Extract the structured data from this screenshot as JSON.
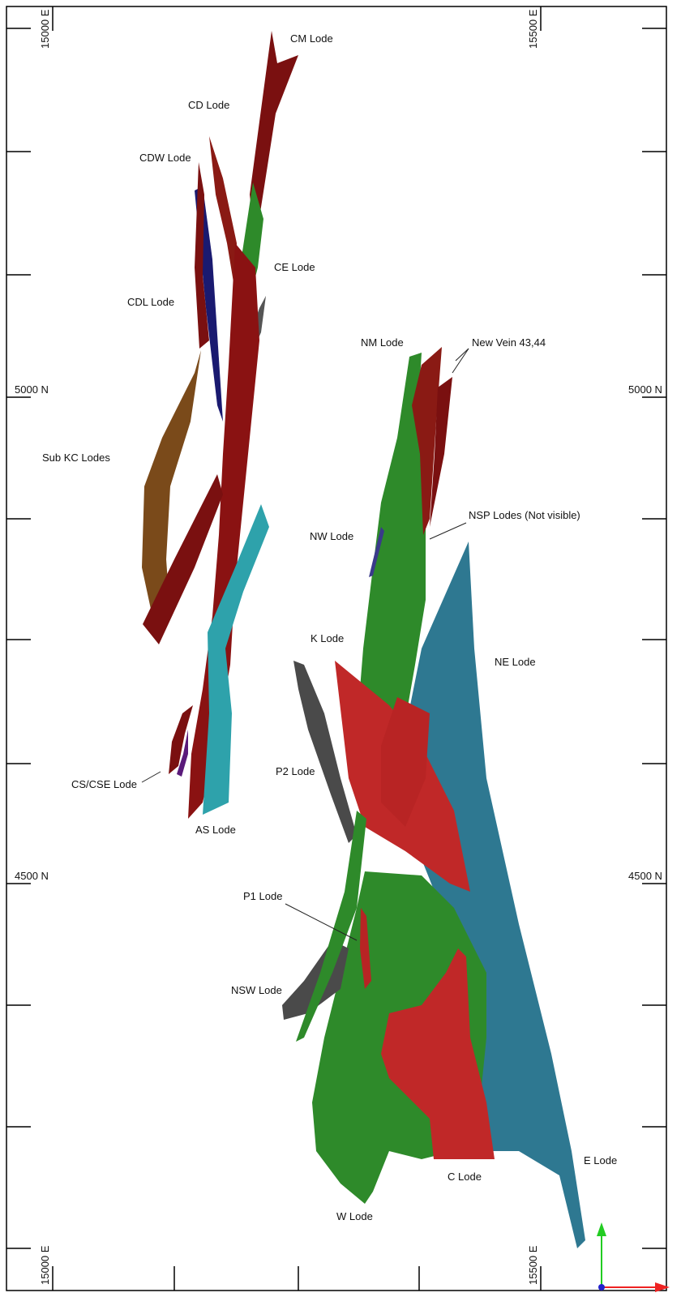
{
  "grid": {
    "eastings": [
      "15000 E",
      "15500 E"
    ],
    "northings": [
      "5000 N",
      "4500 N"
    ]
  },
  "lodes": [
    "CM Lode",
    "CD Lode",
    "CDW Lode",
    "CE Lode",
    "CDL Lode",
    "NM Lode",
    "New Vein 43,44",
    "Sub KC Lodes",
    "NSP Lodes (Not visible)",
    "NW Lode",
    "K Lode",
    "NE Lode",
    "P2 Lode",
    "CS/CSE Lode",
    "AS Lode",
    "P1 Lode",
    "NSW Lode",
    "E Lode",
    "C Lode",
    "W Lode"
  ]
}
